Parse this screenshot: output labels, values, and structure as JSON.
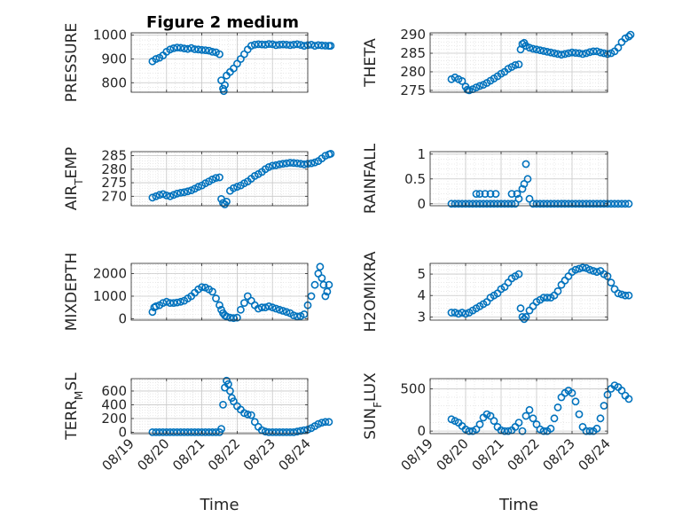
{
  "figure": {
    "title": "Figure 2 medium"
  },
  "colors": {
    "marker": "#0072bd",
    "grid": "#d9d9d9",
    "axis": "#262626"
  },
  "chart_data": [
    {
      "type": "scatter",
      "ylabel": "PRESSURE",
      "yticks": [
        "800",
        "900",
        "1000"
      ],
      "ytick_values": [
        800,
        900,
        1000
      ],
      "ylim": [
        760,
        1010
      ],
      "xlim": [
        "08/19",
        "08/24"
      ],
      "xticks": [],
      "xlabel": "",
      "grid": true,
      "x": [
        0.6,
        0.7,
        0.8,
        0.9,
        1.0,
        1.1,
        1.2,
        1.3,
        1.4,
        1.5,
        1.6,
        1.7,
        1.8,
        1.9,
        2.0,
        2.1,
        2.2,
        2.3,
        2.4,
        2.5,
        2.55,
        2.6,
        2.62,
        2.65,
        2.7,
        2.8,
        2.9,
        3.0,
        3.1,
        3.2,
        3.3,
        3.4,
        3.5,
        3.6,
        3.7,
        3.8,
        3.9,
        4.0,
        4.1,
        4.2,
        4.3,
        4.4,
        4.5,
        4.6,
        4.7,
        4.8,
        4.9,
        5.0,
        5.1,
        5.2,
        5.3,
        5.4,
        5.5,
        5.6,
        5.65
      ],
      "y": [
        890,
        900,
        905,
        915,
        930,
        940,
        945,
        948,
        947,
        944,
        942,
        946,
        941,
        940,
        938,
        937,
        935,
        930,
        928,
        920,
        810,
        775,
        765,
        790,
        830,
        845,
        860,
        880,
        900,
        920,
        940,
        955,
        960,
        962,
        961,
        960,
        963,
        962,
        958,
        960,
        961,
        960,
        958,
        960,
        962,
        959,
        955,
        958,
        960,
        955,
        958,
        957,
        956,
        955,
        955
      ]
    },
    {
      "type": "scatter",
      "ylabel": "THETA",
      "yticks": [
        "275",
        "280",
        "285",
        "290"
      ],
      "ytick_values": [
        275,
        280,
        285,
        290
      ],
      "ylim": [
        274.5,
        290.5
      ],
      "xlim": [
        "08/19",
        "08/24"
      ],
      "xticks": [],
      "xlabel": "",
      "grid": true,
      "x": [
        0.6,
        0.7,
        0.8,
        0.9,
        1.0,
        1.05,
        1.1,
        1.2,
        1.3,
        1.4,
        1.5,
        1.6,
        1.7,
        1.8,
        1.9,
        2.0,
        2.1,
        2.2,
        2.3,
        2.4,
        2.5,
        2.55,
        2.6,
        2.65,
        2.7,
        2.8,
        2.9,
        3.0,
        3.1,
        3.2,
        3.3,
        3.4,
        3.5,
        3.6,
        3.7,
        3.8,
        3.9,
        4.0,
        4.1,
        4.2,
        4.3,
        4.4,
        4.5,
        4.6,
        4.7,
        4.8,
        4.9,
        5.0,
        5.1,
        5.2,
        5.3,
        5.4,
        5.5,
        5.6,
        5.65
      ],
      "y": [
        278,
        278.5,
        278,
        277.5,
        276,
        275.2,
        275,
        275.3,
        275.8,
        276.2,
        276.5,
        277,
        277.6,
        278.2,
        278.8,
        279.5,
        280,
        280.8,
        281.3,
        281.8,
        282,
        286,
        287.5,
        287.8,
        287,
        286.5,
        286.2,
        286,
        285.8,
        285.6,
        285.4,
        285.2,
        285,
        284.8,
        284.6,
        284.8,
        285,
        285.2,
        285.1,
        285,
        284.8,
        285,
        285.3,
        285.5,
        285.5,
        285.2,
        285,
        284.8,
        285,
        285.5,
        286.5,
        288,
        289,
        289.5,
        290
      ]
    },
    {
      "type": "scatter",
      "ylabel": "AIR_TEMP",
      "yticks": [
        "270",
        "275",
        "280",
        "285"
      ],
      "ytick_values": [
        270,
        275,
        280,
        285
      ],
      "ylim": [
        266.5,
        286.5
      ],
      "xlim": [
        "08/19",
        "08/24"
      ],
      "xticks": [],
      "xlabel": "",
      "grid": true,
      "x": [
        0.6,
        0.7,
        0.8,
        0.9,
        1.0,
        1.1,
        1.2,
        1.3,
        1.4,
        1.5,
        1.6,
        1.7,
        1.8,
        1.9,
        2.0,
        2.1,
        2.2,
        2.3,
        2.4,
        2.5,
        2.55,
        2.6,
        2.65,
        2.7,
        2.8,
        2.9,
        3.0,
        3.1,
        3.2,
        3.3,
        3.4,
        3.5,
        3.6,
        3.7,
        3.8,
        3.9,
        4.0,
        4.1,
        4.2,
        4.3,
        4.4,
        4.5,
        4.6,
        4.7,
        4.8,
        4.9,
        5.0,
        5.1,
        5.2,
        5.3,
        5.4,
        5.5,
        5.6,
        5.65
      ],
      "y": [
        269.5,
        270,
        270.5,
        270.8,
        270.3,
        270,
        270.5,
        271,
        271.3,
        271.5,
        271.8,
        272.2,
        272.8,
        273.5,
        274,
        274.8,
        275.5,
        276.2,
        276.8,
        277,
        269,
        267.5,
        267,
        268,
        272,
        273,
        273.5,
        274,
        274.8,
        275.5,
        276.5,
        277.5,
        278.2,
        279,
        280,
        280.8,
        281.3,
        281.5,
        281.8,
        282,
        282.2,
        282.4,
        282.3,
        282.2,
        282,
        281.8,
        282,
        282.2,
        282.5,
        283,
        284,
        285,
        285.5,
        285.7
      ]
    },
    {
      "type": "scatter",
      "ylabel": "RAINFALL",
      "yticks": [
        "0",
        "0.5",
        "1"
      ],
      "ytick_values": [
        0,
        0.5,
        1
      ],
      "ylim": [
        -0.04,
        1.05
      ],
      "xlim": [
        "08/19",
        "08/24"
      ],
      "xticks": [],
      "xlabel": "",
      "grid": true,
      "x": [
        0.6,
        0.7,
        0.8,
        0.9,
        1.0,
        1.1,
        1.2,
        1.3,
        1.4,
        1.5,
        1.6,
        1.7,
        1.8,
        1.9,
        2.0,
        2.1,
        2.2,
        2.3,
        2.4,
        2.5,
        2.6,
        2.65,
        2.7,
        2.75,
        2.8,
        2.9,
        3.0,
        3.1,
        3.2,
        3.3,
        3.4,
        3.5,
        3.6,
        3.7,
        3.8,
        3.9,
        4.0,
        4.1,
        4.2,
        4.3,
        4.4,
        4.5,
        4.6,
        4.7,
        4.8,
        4.9,
        5.0,
        5.1,
        5.2,
        5.3,
        5.4,
        5.5,
        5.6,
        1.3,
        1.4,
        1.55,
        1.7,
        1.85,
        2.3,
        2.45
      ],
      "y": [
        0,
        0,
        0,
        0,
        0,
        0,
        0,
        0,
        0,
        0,
        0,
        0,
        0,
        0,
        0,
        0,
        0,
        0,
        0,
        0.1,
        0.3,
        0.4,
        0.8,
        0.5,
        0.1,
        0,
        0,
        0,
        0,
        0,
        0,
        0,
        0,
        0,
        0,
        0,
        0,
        0,
        0,
        0,
        0,
        0,
        0,
        0,
        0,
        0,
        0,
        0,
        0,
        0,
        0,
        0,
        0,
        0.2,
        0.2,
        0.2,
        0.2,
        0.2,
        0.2,
        0.2
      ]
    },
    {
      "type": "scatter",
      "ylabel": "MIXDEPTH",
      "yticks": [
        "0",
        "1000",
        "2000"
      ],
      "ytick_values": [
        0,
        1000,
        2000
      ],
      "ylim": [
        -60,
        2450
      ],
      "xlim": [
        "08/19",
        "08/24"
      ],
      "xticks": [],
      "xlabel": "",
      "grid": true,
      "x": [
        0.6,
        0.65,
        0.7,
        0.8,
        0.9,
        1.0,
        1.1,
        1.2,
        1.3,
        1.4,
        1.5,
        1.6,
        1.7,
        1.8,
        1.9,
        2.0,
        2.1,
        2.2,
        2.3,
        2.4,
        2.5,
        2.55,
        2.6,
        2.65,
        2.7,
        2.8,
        2.9,
        3.0,
        3.1,
        3.2,
        3.3,
        3.4,
        3.5,
        3.6,
        3.7,
        3.8,
        3.9,
        4.0,
        4.1,
        4.2,
        4.3,
        4.4,
        4.5,
        4.6,
        4.7,
        4.8,
        4.9,
        5.0,
        5.1,
        5.2,
        5.3,
        5.35,
        5.4,
        5.45,
        5.5,
        5.55,
        5.6
      ],
      "y": [
        300,
        500,
        550,
        600,
        700,
        750,
        700,
        700,
        720,
        750,
        800,
        900,
        1000,
        1150,
        1300,
        1400,
        1380,
        1300,
        1200,
        900,
        600,
        400,
        250,
        150,
        100,
        50,
        30,
        50,
        400,
        700,
        1000,
        800,
        600,
        450,
        500,
        500,
        550,
        500,
        450,
        400,
        350,
        300,
        250,
        150,
        100,
        120,
        200,
        600,
        1000,
        1500,
        2000,
        2300,
        1800,
        1500,
        1000,
        1200,
        1500
      ]
    },
    {
      "type": "scatter",
      "ylabel": "H2OMIXRA",
      "yticks": [
        "3",
        "4",
        "5"
      ],
      "ytick_values": [
        3,
        4,
        5
      ],
      "ylim": [
        2.85,
        5.5
      ],
      "xlim": [
        "08/19",
        "08/24"
      ],
      "xticks": [],
      "xlabel": "",
      "grid": true,
      "x": [
        0.6,
        0.7,
        0.8,
        0.9,
        1.0,
        1.1,
        1.2,
        1.3,
        1.4,
        1.5,
        1.6,
        1.7,
        1.8,
        1.9,
        2.0,
        2.1,
        2.2,
        2.3,
        2.4,
        2.5,
        2.55,
        2.6,
        2.65,
        2.7,
        2.8,
        2.9,
        3.0,
        3.1,
        3.2,
        3.3,
        3.4,
        3.5,
        3.6,
        3.7,
        3.8,
        3.9,
        4.0,
        4.1,
        4.2,
        4.3,
        4.4,
        4.5,
        4.6,
        4.7,
        4.8,
        4.9,
        5.0,
        5.1,
        5.2,
        5.3,
        5.4,
        5.5,
        5.6
      ],
      "y": [
        3.2,
        3.2,
        3.15,
        3.2,
        3.15,
        3.2,
        3.3,
        3.4,
        3.5,
        3.6,
        3.7,
        3.9,
        4.0,
        4.1,
        4.3,
        4.4,
        4.6,
        4.8,
        4.9,
        5.0,
        3.4,
        3.0,
        2.9,
        3.0,
        3.3,
        3.5,
        3.7,
        3.8,
        3.9,
        3.9,
        3.9,
        4.0,
        4.2,
        4.5,
        4.7,
        4.9,
        5.1,
        5.2,
        5.25,
        5.3,
        5.28,
        5.2,
        5.15,
        5.1,
        5.15,
        5.0,
        4.9,
        4.6,
        4.3,
        4.1,
        4.05,
        4.0,
        4.0
      ]
    },
    {
      "type": "scatter",
      "ylabel": "TERR_MSL",
      "yticks": [
        "0",
        "200",
        "400",
        "600"
      ],
      "ytick_values": [
        0,
        200,
        400,
        600
      ],
      "ylim": [
        -20,
        780
      ],
      "xlim": [
        "08/19",
        "08/24"
      ],
      "xticks": [
        "08/19",
        "08/20",
        "08/21",
        "08/22",
        "08/23",
        "08/24"
      ],
      "xtick_values": [
        0,
        1,
        2,
        3,
        4,
        5
      ],
      "xlabel": "Time",
      "grid": true,
      "x": [
        0.6,
        0.7,
        0.8,
        0.9,
        1.0,
        1.1,
        1.2,
        1.3,
        1.4,
        1.5,
        1.6,
        1.7,
        1.8,
        1.9,
        2.0,
        2.1,
        2.2,
        2.3,
        2.4,
        2.5,
        2.55,
        2.6,
        2.65,
        2.7,
        2.75,
        2.8,
        2.85,
        2.9,
        3.0,
        3.1,
        3.2,
        3.3,
        3.4,
        3.5,
        3.6,
        3.7,
        3.8,
        3.9,
        4.0,
        4.1,
        4.2,
        4.3,
        4.4,
        4.5,
        4.6,
        4.7,
        4.8,
        4.9,
        5.0,
        5.1,
        5.2,
        5.3,
        5.4,
        5.5,
        5.6
      ],
      "y": [
        0,
        0,
        0,
        0,
        0,
        0,
        0,
        0,
        0,
        0,
        0,
        0,
        0,
        0,
        0,
        0,
        0,
        0,
        0,
        0,
        50,
        400,
        650,
        750,
        700,
        600,
        500,
        450,
        380,
        330,
        280,
        260,
        250,
        150,
        80,
        30,
        10,
        0,
        0,
        0,
        0,
        0,
        0,
        0,
        0,
        10,
        20,
        30,
        40,
        60,
        90,
        120,
        140,
        150,
        150
      ]
    },
    {
      "type": "scatter",
      "ylabel": "SUN_FLUX",
      "yticks": [
        "0",
        "500"
      ],
      "ytick_values": [
        0,
        500
      ],
      "ylim": [
        -30,
        620
      ],
      "xlim": [
        "08/19",
        "08/24"
      ],
      "xticks": [
        "08/19",
        "08/20",
        "08/21",
        "08/22",
        "08/23",
        "08/24"
      ],
      "xtick_values": [
        0,
        1,
        2,
        3,
        4,
        5
      ],
      "xlabel": "Time",
      "grid": true,
      "x": [
        0.6,
        0.7,
        0.8,
        0.9,
        1.0,
        1.1,
        1.2,
        1.3,
        1.4,
        1.5,
        1.6,
        1.7,
        1.8,
        1.9,
        2.0,
        2.1,
        2.2,
        2.3,
        2.4,
        2.5,
        2.6,
        2.7,
        2.8,
        2.9,
        3.0,
        3.1,
        3.2,
        3.3,
        3.4,
        3.5,
        3.6,
        3.7,
        3.8,
        3.9,
        4.0,
        4.1,
        4.2,
        4.3,
        4.4,
        4.5,
        4.6,
        4.7,
        4.8,
        4.9,
        5.0,
        5.1,
        5.2,
        5.3,
        5.4,
        5.5,
        5.6
      ],
      "y": [
        140,
        120,
        100,
        60,
        20,
        0,
        0,
        20,
        80,
        160,
        200,
        180,
        120,
        50,
        10,
        0,
        0,
        10,
        50,
        100,
        0,
        180,
        250,
        150,
        80,
        20,
        0,
        0,
        30,
        150,
        280,
        400,
        450,
        480,
        450,
        350,
        200,
        50,
        0,
        0,
        0,
        30,
        150,
        300,
        430,
        500,
        540,
        520,
        480,
        420,
        380
      ]
    }
  ]
}
